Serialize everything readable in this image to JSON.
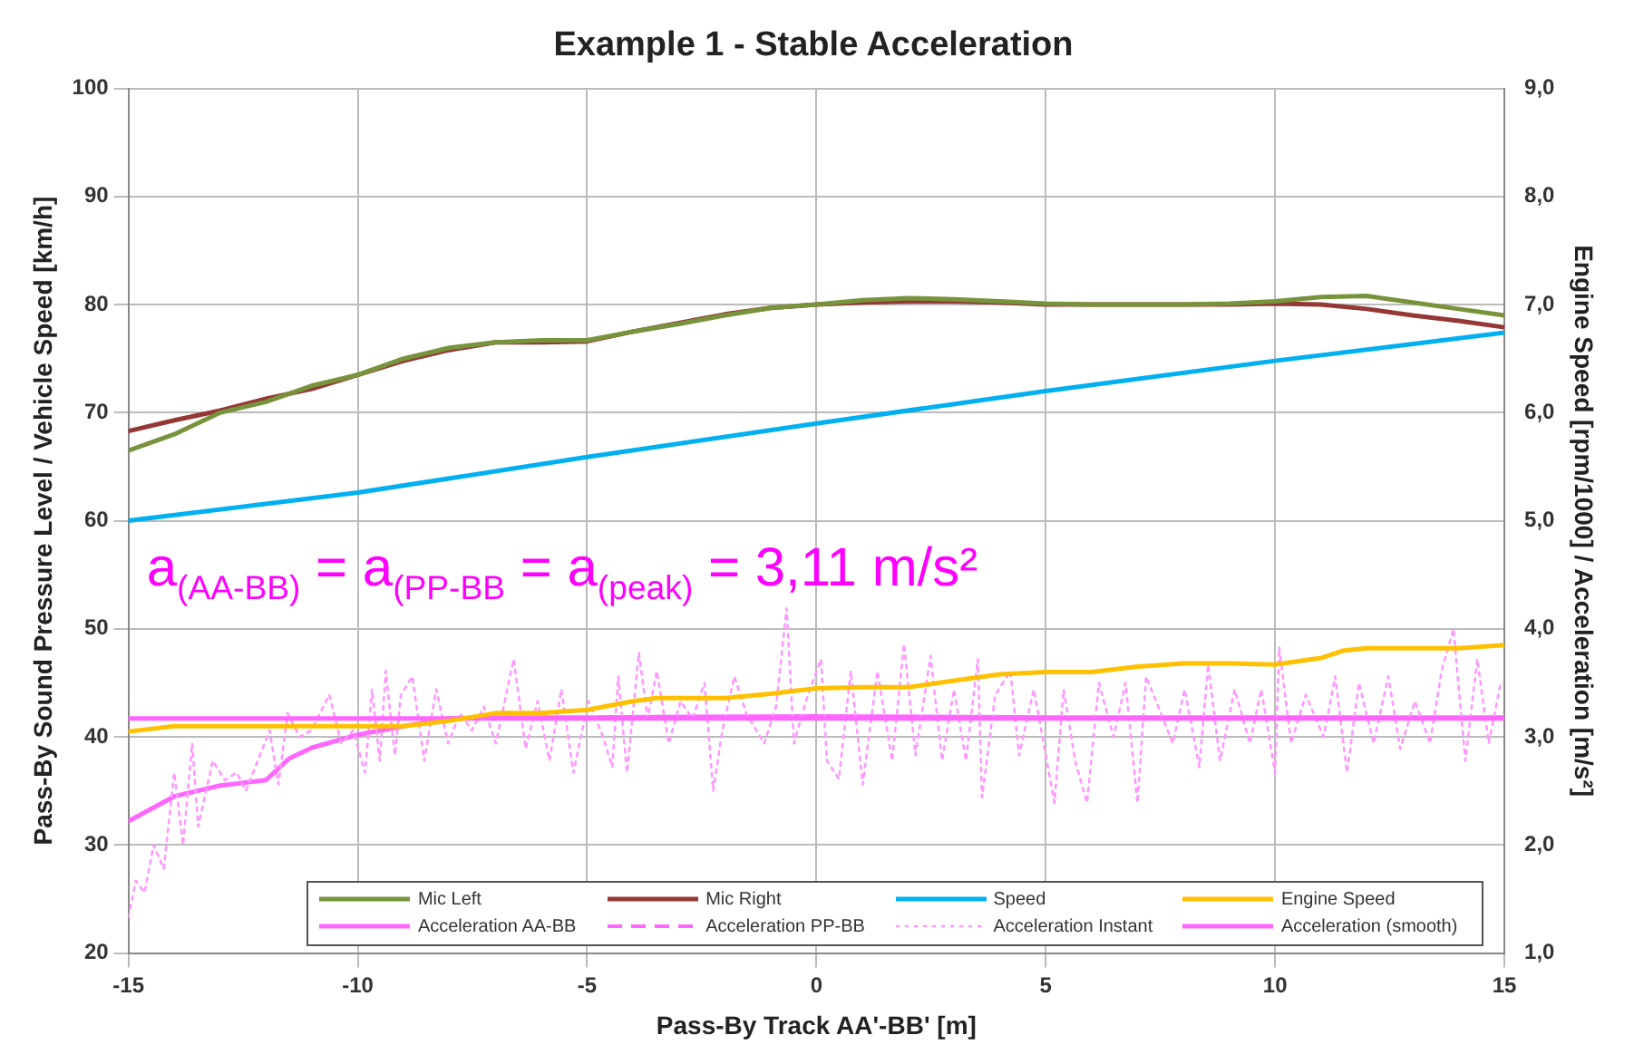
{
  "chart_data": {
    "type": "line",
    "title": "Example 1 - Stable Acceleration",
    "xlabel": "Pass-By Track AA'-BB' [m]",
    "ylabel": "Pass-By Sound Pressure Level / Vehicle Speed [km/h]",
    "y2label": "Engine Speed [rpm/1000] / Acceleration [m/s²]",
    "annotations": [
      "a$_{(AA-BB)}$ = a$_{(PP-BB}$ = a$_{(peak)}$ = 3,11 m/s²"
    ],
    "xlim": [
      -15,
      15
    ],
    "xticks": [
      -15,
      -10,
      -5,
      0,
      5,
      10,
      15
    ],
    "ylim": [
      20,
      100
    ],
    "yticks": [
      20,
      30,
      40,
      50,
      60,
      70,
      80,
      90,
      100
    ],
    "y2lim": [
      1,
      9
    ],
    "y2ticks": [
      {
        "value": 1,
        "label": "1,0"
      },
      {
        "value": 2,
        "label": "2,0"
      },
      {
        "value": 3,
        "label": "3,0"
      },
      {
        "value": 4,
        "label": "4,0"
      },
      {
        "value": 5,
        "label": "5,0"
      },
      {
        "value": 6,
        "label": "6,0"
      },
      {
        "value": 7,
        "label": "7,0"
      },
      {
        "value": 8,
        "label": "8,0"
      },
      {
        "value": 9,
        "label": "9,0"
      }
    ],
    "grid": true,
    "legend": "bottom",
    "marker": "none",
    "series": [
      {
        "name": "Mic Left",
        "color": "#77933c",
        "line_style": "solid",
        "x": [
          -15,
          -14,
          -13,
          -12,
          -11,
          -10,
          -9,
          -8,
          -7,
          -6,
          -5,
          -4,
          -3,
          -2,
          -1,
          0,
          1,
          2,
          3,
          4,
          5,
          6,
          7,
          8,
          9,
          10,
          11,
          12,
          13,
          14,
          15
        ],
        "values": [
          66.5,
          68,
          70,
          71,
          72.5,
          73.5,
          75,
          76,
          76.5,
          76.7,
          76.7,
          77.5,
          78.2,
          79,
          79.7,
          80,
          80.4,
          80.6,
          80.5,
          80.3,
          80.1,
          80,
          80,
          80,
          80.1,
          80.3,
          80.7,
          80.8,
          80.2,
          79.6,
          79
        ]
      },
      {
        "name": "Mic Right",
        "color": "#953735",
        "line_style": "solid",
        "x": [
          -15,
          -14,
          -13,
          -12,
          -11,
          -10,
          -9,
          -8,
          -7,
          -6,
          -5,
          -4,
          -3,
          -2,
          -1,
          0,
          1,
          2,
          3,
          4,
          5,
          6,
          7,
          8,
          9,
          10,
          11,
          12,
          13,
          14,
          15
        ],
        "values": [
          68.3,
          69.3,
          70.2,
          71.3,
          72.2,
          73.5,
          74.8,
          75.8,
          76.5,
          76.5,
          76.6,
          77.5,
          78.3,
          79.1,
          79.7,
          80,
          80.2,
          80.3,
          80.3,
          80.2,
          80,
          80,
          80,
          80,
          80,
          80.1,
          80,
          79.6,
          79,
          78.5,
          77.9
        ]
      },
      {
        "name": "Speed",
        "color": "#00b0f0",
        "line_style": "solid",
        "x": [
          -15,
          -10,
          -5,
          0,
          5,
          10,
          15
        ],
        "values": [
          60,
          62.6,
          65.9,
          69,
          72,
          74.8,
          77.4
        ]
      },
      {
        "name": "Engine Speed",
        "color": "#ffc000",
        "line_style": "solid",
        "axis": "y2",
        "x": [
          -15,
          -14,
          -12,
          -10,
          -9,
          -8,
          -7,
          -6,
          -5,
          -4,
          -3.5,
          -2,
          -1,
          0,
          1,
          2,
          3,
          4,
          5,
          6,
          7,
          8,
          9,
          10,
          11,
          11.5,
          12,
          14,
          15
        ],
        "values": [
          3.05,
          3.1,
          3.1,
          3.1,
          3.1,
          3.15,
          3.22,
          3.22,
          3.25,
          3.33,
          3.36,
          3.36,
          3.4,
          3.45,
          3.46,
          3.46,
          3.52,
          3.58,
          3.6,
          3.6,
          3.65,
          3.68,
          3.68,
          3.67,
          3.73,
          3.8,
          3.82,
          3.82,
          3.85
        ]
      },
      {
        "name": "Acceleration AA-BB",
        "color": "#ff66ff",
        "line_style": "solid",
        "axis": "y2",
        "x": [
          -15,
          15
        ],
        "values": [
          3.17,
          3.17
        ]
      },
      {
        "name": "Acceleration PP-BB",
        "color": "#ff66ff",
        "line_style": "dashed",
        "axis": "y2"
      },
      {
        "name": "Acceleration Instant",
        "color": "#ff99ff",
        "line_style": "dotted",
        "axis": "y2",
        "x": [
          -15,
          -14.84,
          -14.65,
          -14.45,
          -14.23,
          -14,
          -13.81,
          -13.61,
          -13.48,
          -13.16,
          -12.9,
          -12.64,
          -12.44,
          -12.18,
          -11.92,
          -11.73,
          -11.53,
          -11.27,
          -11.01,
          -10.62,
          -10.36,
          -10.1,
          -9.84,
          -9.69,
          -9.52,
          -9.39,
          -9.19,
          -9.06,
          -8.81,
          -8.55,
          -8.29,
          -8.03,
          -7.77,
          -7.51,
          -7.25,
          -6.99,
          -6.6,
          -6.34,
          -6.08,
          -5.82,
          -5.56,
          -5.3,
          -4.97,
          -4.65,
          -4.45,
          -4.32,
          -4.13,
          -3.87,
          -3.68,
          -3.48,
          -3.22,
          -2.96,
          -2.7,
          -2.44,
          -2.25,
          -2.05,
          -1.79,
          -1.53,
          -1.14,
          -0.88,
          -0.65,
          -0.49,
          -0.23,
          0.1,
          0.23,
          0.49,
          0.75,
          1.01,
          1.33,
          1.65,
          1.91,
          2.16,
          2.49,
          2.74,
          3,
          3.26,
          3.52,
          3.61,
          3.9,
          4.23,
          4.42,
          4.74,
          5.19,
          5.39,
          5.64,
          5.9,
          6.16,
          6.48,
          6.74,
          7,
          7.19,
          7.51,
          7.77,
          8.03,
          8.35,
          8.54,
          8.8,
          9.12,
          9.45,
          9.7,
          10,
          10.09,
          10.35,
          10.67,
          11.06,
          11.31,
          11.57,
          11.83,
          12.15,
          12.47,
          12.73,
          13.05,
          13.38,
          13.63,
          13.89,
          14.15,
          14.41,
          14.66,
          14.92
        ],
        "values": [
          1.33,
          1.67,
          1.56,
          2,
          1.78,
          2.67,
          2,
          2.94,
          2.17,
          2.78,
          2.6,
          2.67,
          2.5,
          2.78,
          3.06,
          2.56,
          3.22,
          3,
          3.06,
          3.39,
          2.94,
          3.06,
          2.67,
          3.44,
          2.78,
          3.61,
          2.83,
          3.39,
          3.56,
          2.78,
          3.44,
          2.94,
          3.22,
          3.06,
          3.28,
          2.94,
          3.72,
          2.89,
          3.33,
          2.78,
          3.44,
          2.67,
          3.33,
          3,
          2.72,
          3.56,
          2.67,
          3.78,
          3.17,
          3.61,
          2.94,
          3.33,
          3.17,
          3.5,
          2.5,
          3.06,
          3.56,
          3.22,
          2.94,
          3.28,
          4.19,
          2.94,
          3.33,
          3.72,
          2.78,
          2.61,
          3.61,
          2.56,
          3.61,
          2.78,
          3.86,
          2.83,
          3.75,
          2.78,
          3.44,
          2.78,
          3.72,
          2.44,
          3.39,
          3.61,
          2.83,
          3.44,
          2.39,
          3.44,
          2.78,
          2.39,
          3.5,
          3,
          3.5,
          2.39,
          3.56,
          3.22,
          2.94,
          3.44,
          2.72,
          3.67,
          2.78,
          3.44,
          2.94,
          3.44,
          2.67,
          3.83,
          2.94,
          3.39,
          3,
          3.56,
          2.67,
          3.5,
          2.94,
          3.56,
          2.89,
          3.33,
          2.94,
          3.61,
          4,
          2.78,
          3.72,
          2.94,
          3.5
        ]
      },
      {
        "name": "Acceleration (smooth)",
        "color": "#ff66ff",
        "line_style": "solid",
        "axis": "y2",
        "x": [
          -15,
          -14,
          -13,
          -12,
          -11.5,
          -11,
          -10,
          -9,
          -8,
          -7,
          -5,
          0,
          5,
          10,
          15
        ],
        "values": [
          2.22,
          2.45,
          2.55,
          2.6,
          2.8,
          2.9,
          3.02,
          3.1,
          3.17,
          3.18,
          3.18,
          3.19,
          3.18,
          3.18,
          3.18
        ]
      }
    ]
  }
}
